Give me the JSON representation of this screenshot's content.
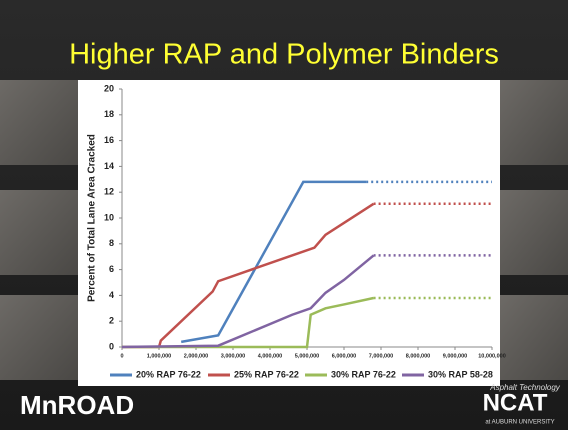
{
  "chart_data": {
    "type": "line",
    "title": "Higher RAP and Polymer Binders",
    "y_label": "Percent of Total Lane Area Cracked",
    "xlim": [
      0,
      10000000
    ],
    "xticks": [
      0,
      {
        "value": 1000000,
        "label": "1,000,000"
      },
      {
        "value": 2000000,
        "label": "2,000,000"
      },
      {
        "value": 3000000,
        "label": "3,000,000"
      },
      {
        "value": 4000000,
        "label": "4,000,000"
      },
      {
        "value": 5000000,
        "label": "5,000,000"
      },
      {
        "value": 6000000,
        "label": "6,000,000"
      },
      {
        "value": 7000000,
        "label": "7,000,000"
      },
      {
        "value": 8000000,
        "label": "8,000,000"
      },
      {
        "value": 9000000,
        "label": "9,000,000"
      },
      {
        "value": 10000000,
        "label": "10,000,000"
      }
    ],
    "ylim": [
      0,
      20
    ],
    "yticks": [
      0,
      2,
      4,
      6,
      8,
      10,
      12,
      14,
      16,
      18,
      20
    ],
    "grid": false,
    "legend": "bottom",
    "series": [
      {
        "name": "20% RAP 76-22",
        "color": "#4f81bd",
        "x": [
          1600000,
          2600000,
          4900000,
          6600000
        ],
        "values": [
          0.4,
          0.9,
          12.8,
          12.8
        ],
        "extension_x": 10000000
      },
      {
        "name": "25% RAP 76-22",
        "color": "#c0504d",
        "x": [
          0,
          1000000,
          1050000,
          2450000,
          2600000,
          3300000,
          4500000,
          5200000,
          5500000,
          6800000
        ],
        "values": [
          0,
          0,
          0.5,
          4.3,
          5.1,
          5.8,
          7,
          7.7,
          8.7,
          11.1
        ],
        "extension_x": 10000000
      },
      {
        "name": "30% RAP 76-22",
        "color": "#9bbb59",
        "x": [
          0,
          5000000,
          5100000,
          5500000,
          6000000,
          6800000
        ],
        "values": [
          0,
          0,
          2.5,
          3,
          3.3,
          3.8
        ],
        "extension_x": 10000000
      },
      {
        "name": "30% RAP 58-28",
        "color": "#8064a2",
        "x": [
          0,
          2600000,
          4600000,
          5100000,
          5500000,
          6000000,
          6800000
        ],
        "values": [
          0,
          0.1,
          2.5,
          3,
          4.2,
          5.2,
          7.1
        ],
        "extension_x": 10000000
      }
    ]
  },
  "branding": {
    "left": "MnROAD",
    "right": "NCAT",
    "right_top": "Asphalt Technology",
    "right_bottom": "at AUBURN UNIVERSITY"
  }
}
